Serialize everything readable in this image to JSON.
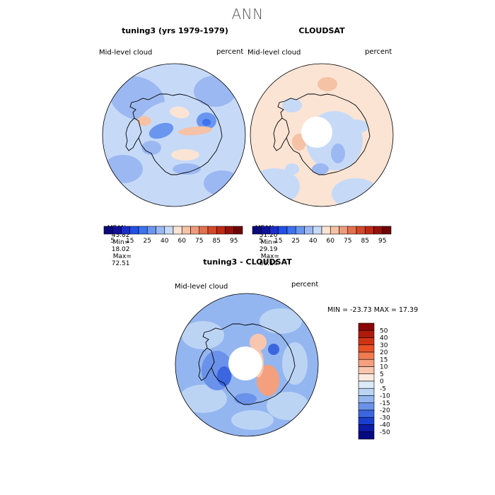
{
  "figure": {
    "title": "ANN"
  },
  "panels": [
    {
      "title": "tuning3 (yrs 1979-1979)",
      "variable": "Mid-level cloud",
      "units": "percent",
      "stats": {
        "mean_label": "MEAN=",
        "mean": "43.82",
        "min_label": "Min=",
        "min": "18.02",
        "max_label": "Max=",
        "max": "72.51"
      }
    },
    {
      "title": "CLOUDSAT",
      "variable": "Mid-level cloud",
      "units": "percent",
      "stats": {
        "mean_label": "MEAN=",
        "mean": "51.20",
        "min_label": "Min=",
        "min": "29.19",
        "max_label": "Max=",
        "max": "66.14"
      }
    },
    {
      "title": "tuning3 - CLOUDSAT",
      "variable": "Mid-level cloud",
      "units": "percent",
      "minmax_text": "MIN = -23.73  MAX =  17.39"
    }
  ],
  "chart_data": [
    {
      "type": "heatmap",
      "projection": "south polar stereographic",
      "title": "tuning3 (yrs 1979-1979)",
      "variable": "Mid-level cloud",
      "units": "percent",
      "mean": 43.82,
      "min": 18.02,
      "max": 72.51,
      "colorbar": {
        "levels": [
          5,
          10,
          15,
          20,
          25,
          30,
          40,
          50,
          60,
          70,
          75,
          80,
          85,
          90,
          95
        ],
        "tick_labels": [
          "5",
          "15",
          "25",
          "40",
          "60",
          "75",
          "85",
          "95"
        ],
        "colors": [
          "#0a0a7a",
          "#10109a",
          "#1a2ec8",
          "#2050e6",
          "#3d72f0",
          "#6a96f0",
          "#9cb8f2",
          "#c6daf8",
          "#fbe4d4",
          "#f5c2a6",
          "#ef9a7a",
          "#e4704e",
          "#d4492a",
          "#be2a14",
          "#96110a",
          "#6e0606"
        ]
      }
    },
    {
      "type": "heatmap",
      "projection": "south polar stereographic",
      "title": "CLOUDSAT",
      "variable": "Mid-level cloud",
      "units": "percent",
      "mean": 51.2,
      "min": 29.19,
      "max": 66.14,
      "colorbar": {
        "levels": [
          5,
          10,
          15,
          20,
          25,
          30,
          40,
          50,
          60,
          70,
          75,
          80,
          85,
          90,
          95
        ],
        "tick_labels": [
          "5",
          "15",
          "25",
          "40",
          "60",
          "75",
          "85",
          "95"
        ],
        "colors": [
          "#0a0a7a",
          "#10109a",
          "#1a2ec8",
          "#2050e6",
          "#3d72f0",
          "#6a96f0",
          "#9cb8f2",
          "#c6daf8",
          "#fbe4d4",
          "#f5c2a6",
          "#ef9a7a",
          "#e4704e",
          "#d4492a",
          "#be2a14",
          "#96110a",
          "#6e0606"
        ]
      }
    },
    {
      "type": "heatmap",
      "projection": "south polar stereographic",
      "title": "tuning3 - CLOUDSAT",
      "variable": "Mid-level cloud",
      "units": "percent",
      "min": -23.73,
      "max": 17.39,
      "colorbar": {
        "orientation": "vertical",
        "tick_labels": [
          "50",
          "40",
          "30",
          "20",
          "15",
          "10",
          "5",
          "0",
          "-5",
          "-10",
          "-15",
          "-20",
          "-30",
          "-40",
          "-50"
        ],
        "colors": [
          "#8a0606",
          "#b01a0a",
          "#d03416",
          "#e85226",
          "#f07a52",
          "#f4a07e",
          "#f8c6ae",
          "#faeae0",
          "#dceaf8",
          "#bcd4f4",
          "#94b6f0",
          "#6a92ea",
          "#3c66e0",
          "#1a3ed0",
          "#0c1aa8",
          "#040a80"
        ]
      }
    }
  ]
}
